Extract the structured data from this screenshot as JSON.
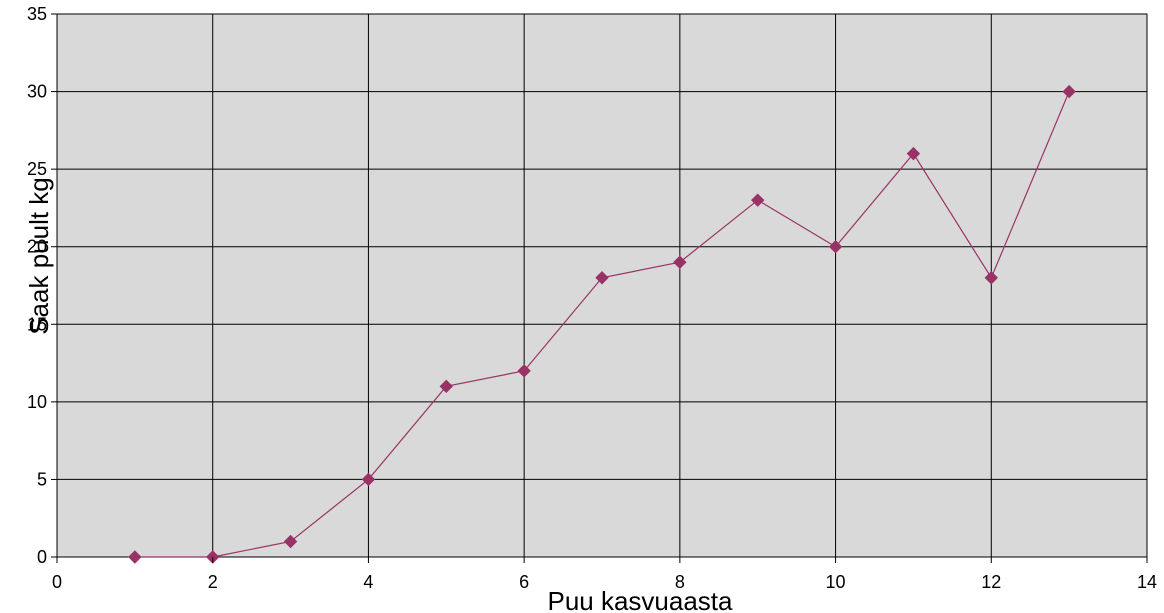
{
  "chart_data": {
    "type": "line",
    "title": "",
    "xlabel": "Puu kasvuaasta",
    "ylabel": "Saak puult kg",
    "xlim": [
      0,
      14
    ],
    "ylim": [
      0,
      35
    ],
    "x_ticks": [
      0,
      2,
      4,
      6,
      8,
      10,
      12,
      14
    ],
    "y_ticks": [
      0,
      5,
      10,
      15,
      20,
      25,
      30,
      35
    ],
    "grid": true,
    "legend": "none",
    "plot_background": "#d9d9d9",
    "series": [
      {
        "color": "#993366",
        "marker": "diamond",
        "x": [
          1,
          2,
          3,
          4,
          5,
          6,
          7,
          8,
          9,
          10,
          11,
          12,
          13
        ],
        "y": [
          0,
          0,
          1,
          5,
          11,
          12,
          18,
          19,
          23,
          20,
          26,
          18,
          30
        ]
      }
    ]
  }
}
